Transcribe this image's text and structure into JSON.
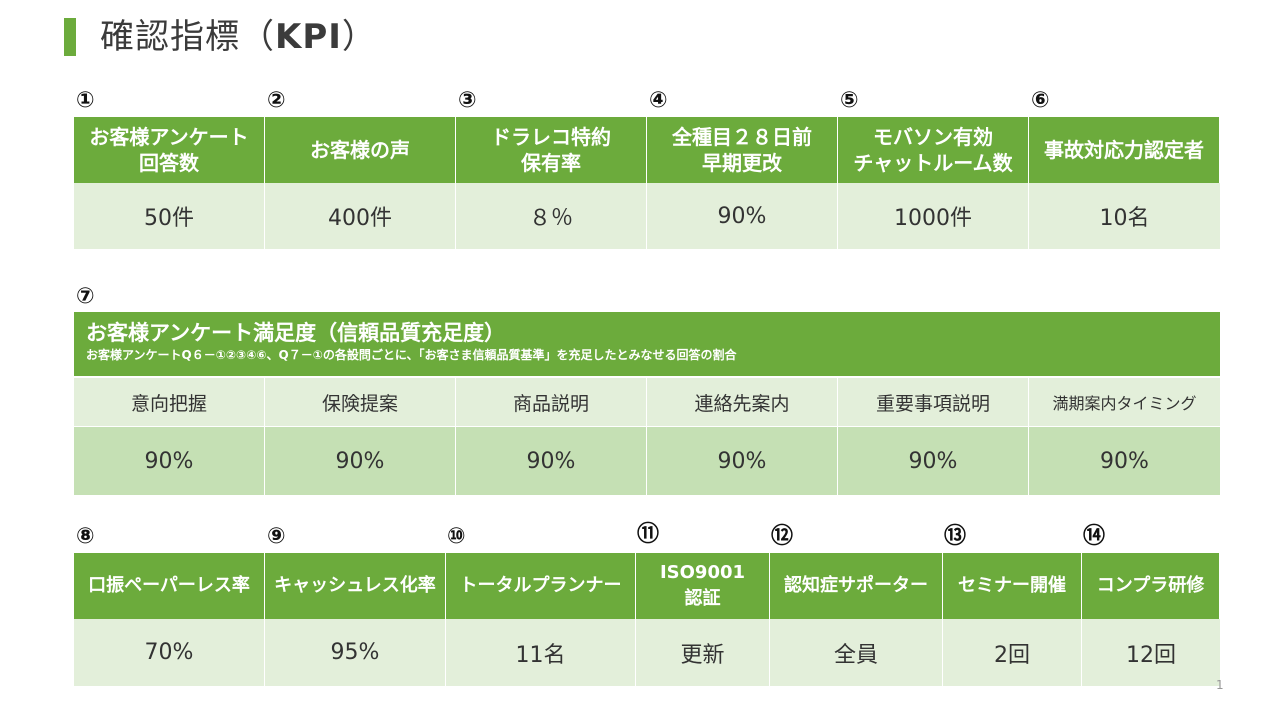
{
  "page": {
    "title_main": "確認指標（",
    "title_kpi": "KPI",
    "title_end": "）",
    "page_number": "1"
  },
  "section1": {
    "numbers": [
      "①",
      "②",
      "③",
      "④",
      "⑤",
      "⑥"
    ],
    "headers": [
      [
        "お客様アンケート",
        "回答数"
      ],
      [
        "お客様の声"
      ],
      [
        "ドラレコ特約",
        "保有率"
      ],
      [
        "全種目２８日前",
        "早期更改"
      ],
      [
        "モバソン有効",
        "チャットルーム数"
      ],
      [
        "事故対応力認定者"
      ]
    ],
    "values": [
      "50件",
      "400件",
      "８％",
      "90%",
      "1000件",
      "10名"
    ]
  },
  "section2": {
    "number": "⑦",
    "title": "お客様アンケート満足度（信頼品質充足度）",
    "note": "お客様アンケートQ６－①②③④⑥、Q７－①の各設問ごとに、「お客さま信頼品質基準」を充足したとみなせる回答の割合",
    "items": [
      "意向把握",
      "保険提案",
      "商品説明",
      "連絡先案内",
      "重要事項説明",
      "満期案内タイミング"
    ],
    "values": [
      "90%",
      "90%",
      "90%",
      "90%",
      "90%",
      "90%"
    ]
  },
  "section3": {
    "numbers": [
      "⑧",
      "⑨",
      "⑩",
      "⑪",
      "⑫",
      "⑬",
      "⑭"
    ],
    "headers": [
      [
        "口振ペーパーレス率"
      ],
      [
        "キャッシュレス化率"
      ],
      [
        "トータルプランナー"
      ],
      [
        "ISO9001",
        "認証"
      ],
      [
        "認知症サポーター"
      ],
      [
        "セミナー開催"
      ],
      [
        "コンプラ研修"
      ]
    ],
    "values": [
      "70%",
      "95%",
      "11名",
      "更新",
      "全員",
      "2回",
      "12回"
    ]
  },
  "colors": {
    "header_green": "#6cab3c",
    "light_green": "#e3efda",
    "mid_green": "#c5e0b4"
  }
}
